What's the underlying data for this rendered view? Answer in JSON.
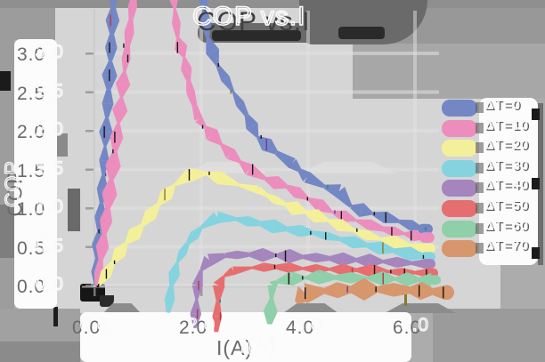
{
  "title": "COP vs.I",
  "axes": {
    "x_label": "I(A)",
    "y_label": "COP",
    "x_ticks": [
      "0.0",
      "2.0",
      "4.0",
      "6.0"
    ],
    "y_ticks": [
      "3.0",
      "2.5",
      "2.0",
      "1.5",
      "1.0",
      "0.5",
      "0.0"
    ]
  },
  "legend": {
    "items": [
      {
        "label": "ΔT=0",
        "color": "#7487c5"
      },
      {
        "label": "ΔT=10",
        "color": "#ec8dbd"
      },
      {
        "label": "ΔT=20",
        "color": "#f4f09a"
      },
      {
        "label": "ΔT=30",
        "color": "#85d3df"
      },
      {
        "label": "ΔT=40",
        "color": "#a485be"
      },
      {
        "label": "ΔT=50",
        "color": "#e76e70"
      },
      {
        "label": "ΔT=60",
        "color": "#8fcfa9"
      },
      {
        "label": "ΔT=70",
        "color": "#d8966c"
      }
    ]
  },
  "chart_data": {
    "type": "line",
    "title": "COP vs.I",
    "xlabel": "I(A)",
    "ylabel": "COP",
    "xlim": [
      -0.1,
      6.7
    ],
    "ylim": [
      0.0,
      3.0
    ],
    "x_tick_values": [
      0.0,
      2.0,
      4.0,
      6.0
    ],
    "y_tick_values": [
      3.0,
      2.5,
      2.0,
      1.5,
      1.0,
      0.5,
      0.0
    ],
    "grid": true,
    "legend_position": "right-outside",
    "style": "thick sketchy ribbon strokes with diamond bulges and dark hatch noise; COP for ΔT=0 and ΔT=10 exceeds the visible 3.0 axis limit between rise and descent",
    "noise_colors": [
      "#161616",
      "#1d8a78",
      "#6a3e9e",
      "#86792a",
      "#b03a4a"
    ],
    "series": [
      {
        "name": "ΔT=0",
        "color": "#7487c5",
        "width_factor": 1.05,
        "points": [
          [
            0.02,
            0.0
          ],
          [
            0.1,
            0.7
          ],
          [
            0.2,
            1.8
          ],
          [
            0.3,
            2.9
          ],
          [
            0.38,
            3.95
          ],
          [
            2.0,
            3.95
          ],
          [
            2.12,
            3.2
          ],
          [
            2.3,
            2.85
          ],
          [
            2.6,
            2.5
          ],
          [
            2.85,
            2.2
          ],
          [
            3.05,
            1.92
          ],
          [
            3.4,
            1.72
          ],
          [
            3.7,
            1.58
          ],
          [
            3.98,
            1.4
          ],
          [
            4.3,
            1.28
          ],
          [
            4.58,
            1.22
          ],
          [
            4.8,
            1.02
          ],
          [
            5.2,
            0.93
          ],
          [
            5.7,
            0.83
          ],
          [
            6.15,
            0.73
          ]
        ]
      },
      {
        "name": "ΔT=10",
        "color": "#ec8dbd",
        "width_factor": 1.05,
        "points": [
          [
            0.05,
            0.0
          ],
          [
            0.25,
            1.0
          ],
          [
            0.45,
            2.1
          ],
          [
            0.62,
            3.1
          ],
          [
            0.78,
            3.95
          ],
          [
            1.45,
            3.95
          ],
          [
            1.56,
            3.2
          ],
          [
            1.68,
            2.95
          ],
          [
            1.8,
            2.5
          ],
          [
            1.95,
            2.15
          ],
          [
            2.2,
            1.95
          ],
          [
            2.55,
            1.7
          ],
          [
            2.9,
            1.5
          ],
          [
            3.2,
            1.38
          ],
          [
            3.6,
            1.28
          ],
          [
            4.0,
            1.12
          ],
          [
            4.45,
            0.95
          ],
          [
            4.9,
            0.84
          ],
          [
            5.4,
            0.73
          ],
          [
            5.8,
            0.67
          ],
          [
            6.18,
            0.62
          ]
        ]
      },
      {
        "name": "ΔT=20",
        "color": "#f4f09a",
        "width_factor": 1.0,
        "points": [
          [
            0.08,
            0.0
          ],
          [
            0.35,
            0.3
          ],
          [
            0.6,
            0.55
          ],
          [
            0.9,
            0.78
          ],
          [
            1.2,
            1.05
          ],
          [
            1.5,
            1.3
          ],
          [
            1.8,
            1.43
          ],
          [
            2.1,
            1.45
          ],
          [
            2.35,
            1.39
          ],
          [
            2.7,
            1.3
          ],
          [
            3.05,
            1.24
          ],
          [
            3.4,
            1.1
          ],
          [
            3.75,
            1.0
          ],
          [
            4.15,
            0.9
          ],
          [
            4.6,
            0.78
          ],
          [
            5.1,
            0.65
          ],
          [
            5.6,
            0.56
          ],
          [
            6.2,
            0.48
          ]
        ]
      },
      {
        "name": "ΔT=30",
        "color": "#85d3df",
        "width_factor": 1.0,
        "points": [
          [
            1.38,
            -0.35
          ],
          [
            1.44,
            0.0
          ],
          [
            1.55,
            0.3
          ],
          [
            1.75,
            0.55
          ],
          [
            2.0,
            0.75
          ],
          [
            2.3,
            0.88
          ],
          [
            2.65,
            0.86
          ],
          [
            3.1,
            0.8
          ],
          [
            3.6,
            0.73
          ],
          [
            4.1,
            0.68
          ],
          [
            4.6,
            0.6
          ],
          [
            5.1,
            0.52
          ],
          [
            5.6,
            0.45
          ],
          [
            6.2,
            0.37
          ]
        ]
      },
      {
        "name": "ΔT=40",
        "color": "#a485be",
        "width_factor": 1.0,
        "points": [
          [
            1.88,
            -0.55
          ],
          [
            1.93,
            0.0
          ],
          [
            2.0,
            0.2
          ],
          [
            2.15,
            0.33
          ],
          [
            2.45,
            0.39
          ],
          [
            2.9,
            0.4
          ],
          [
            3.4,
            0.39
          ],
          [
            3.9,
            0.37
          ],
          [
            4.4,
            0.35
          ],
          [
            4.9,
            0.33
          ],
          [
            5.4,
            0.31
          ],
          [
            6.2,
            0.28
          ]
        ]
      },
      {
        "name": "ΔT=50",
        "color": "#e76e70",
        "width_factor": 1.0,
        "points": [
          [
            2.28,
            -0.6
          ],
          [
            2.33,
            0.0
          ],
          [
            2.42,
            0.12
          ],
          [
            2.6,
            0.19
          ],
          [
            2.95,
            0.23
          ],
          [
            3.4,
            0.24
          ],
          [
            3.9,
            0.22
          ],
          [
            4.4,
            0.21
          ],
          [
            4.9,
            0.2
          ],
          [
            5.5,
            0.18
          ],
          [
            6.25,
            0.16
          ]
        ]
      },
      {
        "name": "ΔT=60",
        "color": "#8fcfa9",
        "width_factor": 1.0,
        "points": [
          [
            3.28,
            -0.5
          ],
          [
            3.33,
            0.0
          ],
          [
            3.42,
            0.05
          ],
          [
            3.7,
            0.09
          ],
          [
            4.2,
            0.11
          ],
          [
            4.8,
            0.1
          ],
          [
            5.4,
            0.09
          ],
          [
            6.3,
            0.07
          ]
        ]
      },
      {
        "name": "ΔT=70",
        "color": "#d8966c",
        "width_factor": 1.5,
        "points": [
          [
            3.78,
            -0.22
          ],
          [
            3.95,
            -0.1
          ],
          [
            4.3,
            -0.07
          ],
          [
            4.8,
            -0.05
          ],
          [
            5.3,
            -0.05
          ],
          [
            5.9,
            -0.06
          ],
          [
            6.55,
            -0.09
          ]
        ]
      }
    ]
  }
}
